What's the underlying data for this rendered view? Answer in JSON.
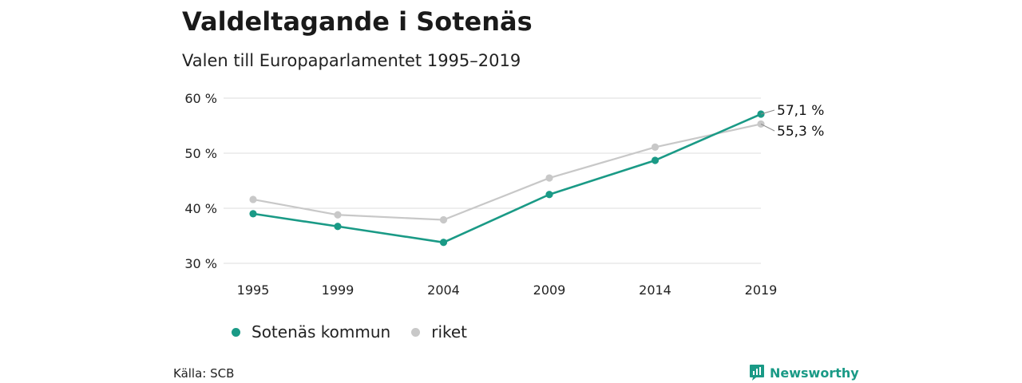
{
  "title": "Valdeltagande i Sotenäs",
  "subtitle": "Valen till Europaparlamentet 1995–2019",
  "source": "Källa: SCB",
  "brand": {
    "name": "Newsworthy",
    "icon": "bar-chart-logo-icon",
    "color": "#1a9a86"
  },
  "chart_data": {
    "type": "line",
    "x": [
      "1995",
      "1999",
      "2004",
      "2009",
      "2014",
      "2019"
    ],
    "y_ticks": [
      "30 %",
      "40 %",
      "50 %",
      "60 %"
    ],
    "y_tick_values": [
      30,
      40,
      50,
      60
    ],
    "ylim": [
      30,
      60
    ],
    "grid": true,
    "legend_position": "bottom",
    "series": [
      {
        "name": "Sotenäs kommun",
        "color": "#1a9a86",
        "values": [
          39.0,
          36.7,
          33.8,
          42.5,
          48.7,
          57.1
        ],
        "end_label": "57,1 %"
      },
      {
        "name": "riket",
        "color": "#c8c8c8",
        "values": [
          41.6,
          38.8,
          37.9,
          45.5,
          51.1,
          55.3
        ],
        "end_label": "55,3 %"
      }
    ]
  }
}
